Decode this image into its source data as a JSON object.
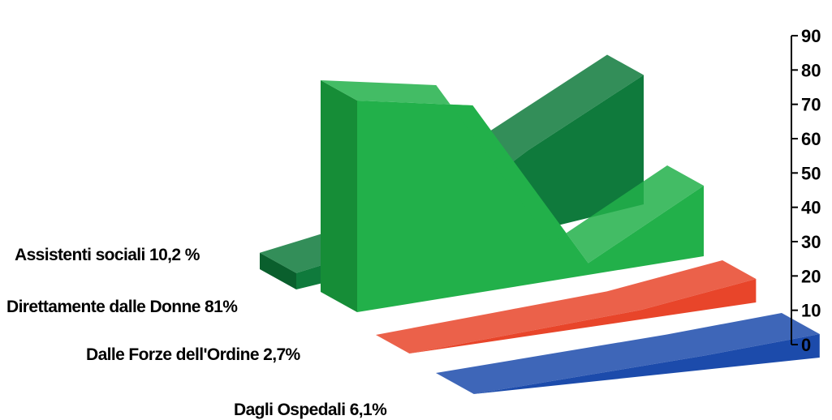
{
  "chart_data": {
    "type": "area",
    "style": "3d-ribbon",
    "grid": false,
    "legend": "none",
    "series": [
      {
        "name": "Assistenti sociali 10,2 %",
        "values": [
          7,
          10,
          35,
          55
        ],
        "color": "#0f7a3c",
        "side_color": "#0a5f2d"
      },
      {
        "name": "Direttamente dalle Donne 81%",
        "values": [
          90,
          80,
          5,
          30
        ],
        "color": "#22b04a",
        "side_color": "#168d37"
      },
      {
        "name": "Dalle Forze dell'Ordine 2,7%",
        "values": [
          0,
          2,
          4,
          10
        ],
        "color": "#e8452a",
        "side_color": "#c4341b"
      },
      {
        "name": "Dagli Ospedali 6,1%",
        "values": [
          0,
          3,
          6,
          10
        ],
        "color": "#1c4bab",
        "side_color": "#123688"
      }
    ],
    "yaxis": {
      "ticks": [
        "0",
        "10",
        "20",
        "30",
        "40",
        "50",
        "60",
        "70",
        "80",
        "90"
      ],
      "ylim": [
        0,
        90
      ]
    }
  }
}
